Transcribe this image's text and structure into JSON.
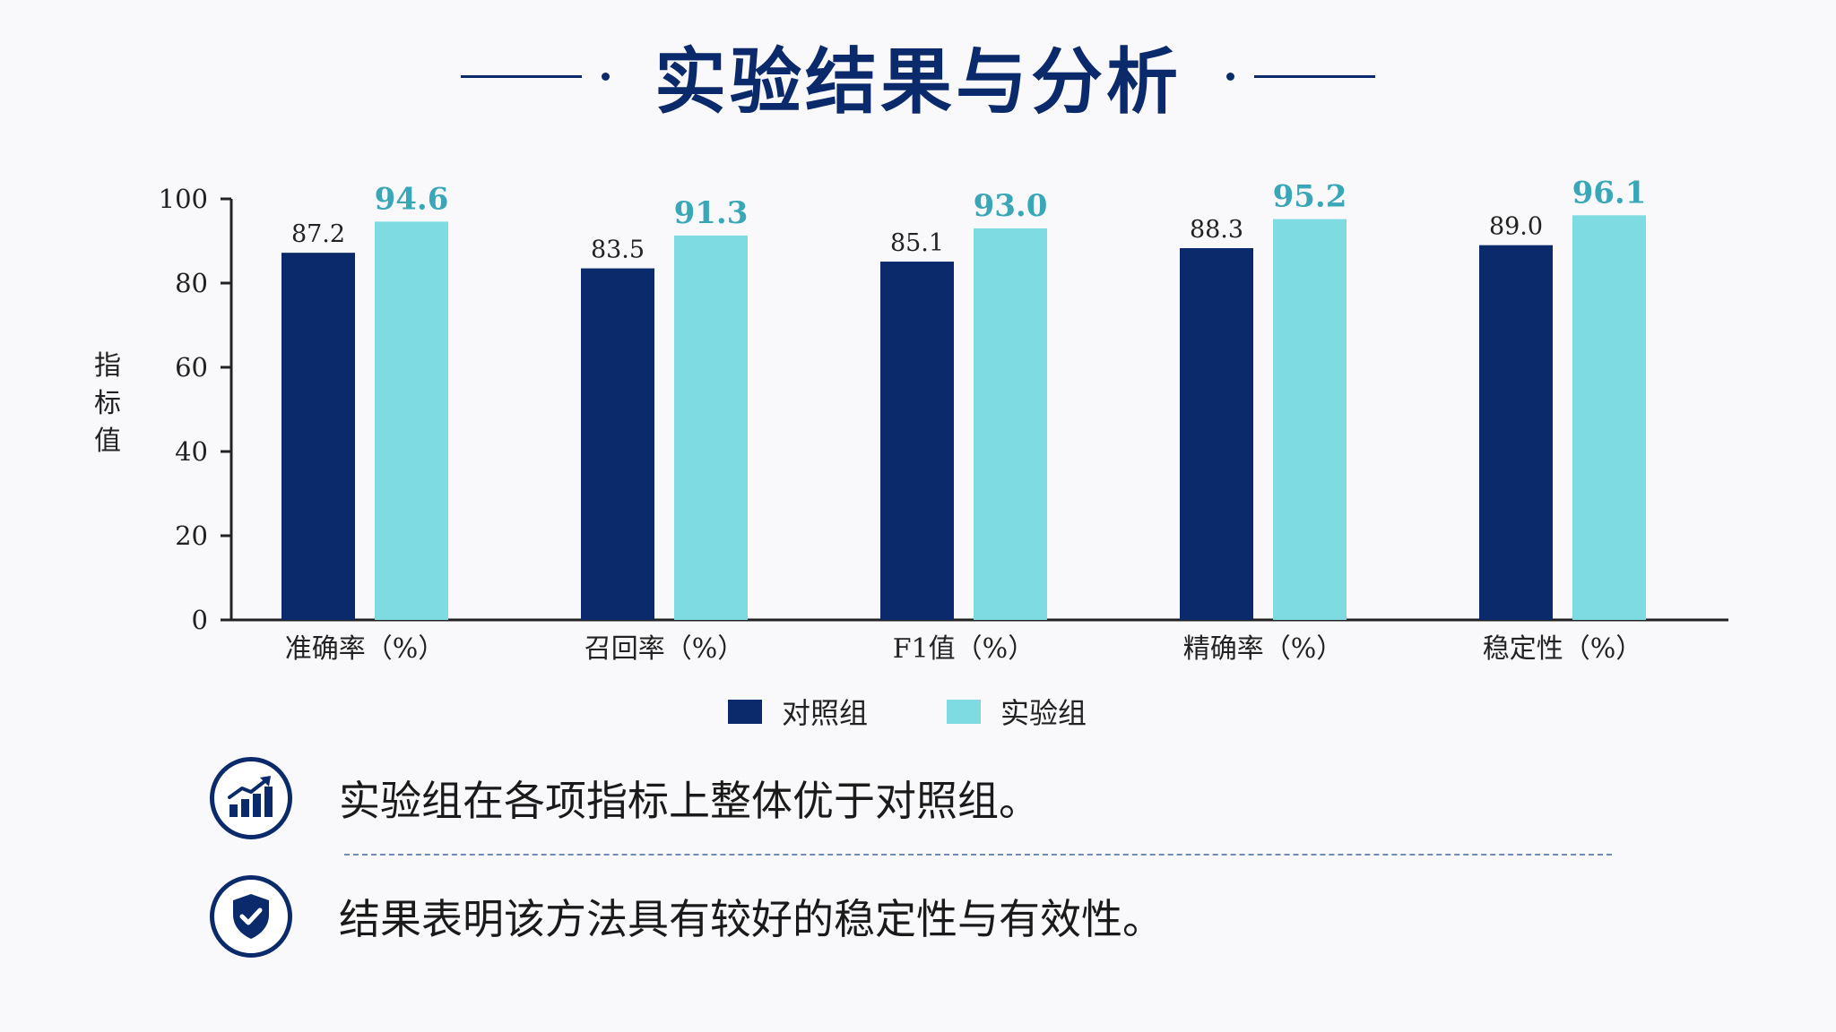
{
  "title": "实验结果与分析",
  "colors": {
    "navy": "#0b2a6b",
    "cyan": "#7fdbe2",
    "value_cyan": "#3aa7b8"
  },
  "chart_data": {
    "type": "bar",
    "categories": [
      "准确率（%）",
      "召回率（%）",
      "F1值（%）",
      "精确率（%）",
      "稳定性（%）"
    ],
    "series": [
      {
        "name": "对照组",
        "values": [
          87.2,
          83.5,
          85.1,
          88.3,
          89.0
        ],
        "color": "#0b2a6b"
      },
      {
        "name": "实验组",
        "values": [
          94.6,
          91.3,
          93.0,
          95.2,
          96.1
        ],
        "color": "#7fdbe2"
      }
    ],
    "ylabel": "指标值",
    "ylim": [
      0,
      100
    ],
    "yticks": [
      "0",
      "20",
      "40",
      "60",
      "80",
      "100"
    ],
    "grid": false,
    "legend": "bottom-center"
  },
  "findings": [
    {
      "icon": "trend-chart-icon",
      "text": "实验组在各项指标上整体优于对照组。"
    },
    {
      "icon": "shield-check-icon",
      "text": "结果表明该方法具有较好的稳定性与有效性。"
    }
  ]
}
